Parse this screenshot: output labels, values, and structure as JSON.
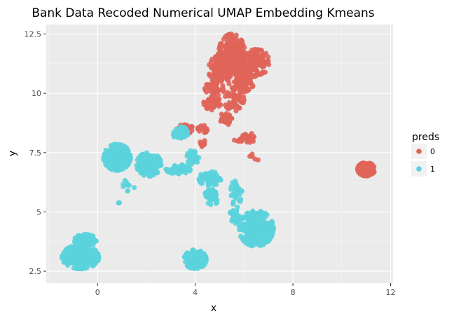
{
  "chart_data": {
    "type": "scatter",
    "title": "Bank Data Recoded Numerical UMAP Embedding Kmeans",
    "xlabel": "x",
    "ylabel": "y",
    "xlim": [
      -2.1,
      12.1
    ],
    "ylim": [
      2.0,
      12.9
    ],
    "x_ticks": [
      0,
      4,
      8,
      12
    ],
    "x_tick_labels": [
      "0",
      "4",
      "8",
      "12"
    ],
    "y_ticks": [
      2.5,
      5,
      7.5,
      10,
      12.5
    ],
    "y_tick_labels": [
      "2.5",
      "5",
      "7.5",
      "10",
      "12.5"
    ],
    "grid": true,
    "legend": {
      "title": "preds",
      "placement": "right",
      "entries": [
        {
          "label": "0",
          "color": "#e06459"
        },
        {
          "label": "1",
          "color": "#5bd3dc"
        }
      ]
    },
    "series": [
      {
        "name": "0",
        "color": "#e06459",
        "clusters": [
          {
            "cx": 5.5,
            "cy": 11.6,
            "rx": 0.55,
            "ry": 0.9,
            "n": 260
          },
          {
            "cx": 6.5,
            "cy": 11.3,
            "rx": 0.55,
            "ry": 0.55,
            "n": 130
          },
          {
            "cx": 5.0,
            "cy": 11.0,
            "rx": 0.45,
            "ry": 0.6,
            "n": 90
          },
          {
            "cx": 5.9,
            "cy": 10.6,
            "rx": 0.55,
            "ry": 0.55,
            "n": 110
          },
          {
            "cx": 4.8,
            "cy": 10.2,
            "rx": 0.4,
            "ry": 0.3,
            "n": 50
          },
          {
            "cx": 4.7,
            "cy": 9.6,
            "rx": 0.35,
            "ry": 0.3,
            "n": 55
          },
          {
            "cx": 5.6,
            "cy": 9.7,
            "rx": 0.4,
            "ry": 0.45,
            "n": 45
          },
          {
            "cx": 5.2,
            "cy": 8.9,
            "rx": 0.3,
            "ry": 0.25,
            "n": 35
          },
          {
            "cx": 3.6,
            "cy": 8.5,
            "rx": 0.3,
            "ry": 0.2,
            "n": 30
          },
          {
            "cx": 4.3,
            "cy": 8.5,
            "rx": 0.2,
            "ry": 0.2,
            "n": 18
          },
          {
            "cx": 4.3,
            "cy": 7.9,
            "rx": 0.12,
            "ry": 0.15,
            "n": 8
          },
          {
            "cx": 5.8,
            "cy": 8.0,
            "rx": 0.2,
            "ry": 0.12,
            "n": 10
          },
          {
            "cx": 6.2,
            "cy": 8.1,
            "rx": 0.3,
            "ry": 0.22,
            "n": 30
          },
          {
            "cx": 6.4,
            "cy": 7.2,
            "rx": 0.2,
            "ry": 0.25,
            "n": 5
          },
          {
            "cx": 11.0,
            "cy": 6.8,
            "rx": 0.35,
            "ry": 0.28,
            "n": 220
          }
        ]
      },
      {
        "name": "1",
        "color": "#5bd3dc",
        "clusters": [
          {
            "cx": 0.8,
            "cy": 7.3,
            "rx": 0.55,
            "ry": 0.55,
            "n": 240
          },
          {
            "cx": 2.1,
            "cy": 7.0,
            "rx": 0.5,
            "ry": 0.5,
            "n": 120
          },
          {
            "cx": 1.2,
            "cy": 6.1,
            "rx": 0.4,
            "ry": 0.3,
            "n": 10
          },
          {
            "cx": 3.3,
            "cy": 6.8,
            "rx": 0.5,
            "ry": 0.2,
            "n": 60
          },
          {
            "cx": 3.4,
            "cy": 8.3,
            "rx": 0.3,
            "ry": 0.3,
            "n": 45
          },
          {
            "cx": 3.9,
            "cy": 7.3,
            "rx": 0.25,
            "ry": 0.3,
            "n": 45
          },
          {
            "cx": 4.6,
            "cy": 6.4,
            "rx": 0.45,
            "ry": 0.3,
            "n": 70
          },
          {
            "cx": 4.7,
            "cy": 5.7,
            "rx": 0.3,
            "ry": 0.4,
            "n": 45
          },
          {
            "cx": 5.7,
            "cy": 5.8,
            "rx": 0.25,
            "ry": 0.6,
            "n": 35
          },
          {
            "cx": 6.5,
            "cy": 4.3,
            "rx": 0.7,
            "ry": 0.75,
            "n": 300
          },
          {
            "cx": 5.6,
            "cy": 4.8,
            "rx": 0.2,
            "ry": 0.3,
            "n": 25
          },
          {
            "cx": -0.7,
            "cy": 3.1,
            "rx": 0.75,
            "ry": 0.5,
            "n": 300
          },
          {
            "cx": -0.5,
            "cy": 3.8,
            "rx": 0.45,
            "ry": 0.25,
            "n": 90
          },
          {
            "cx": 4.0,
            "cy": 3.0,
            "rx": 0.45,
            "ry": 0.4,
            "n": 160
          },
          {
            "cx": 0.9,
            "cy": 5.4,
            "rx": 0.05,
            "ry": 0.05,
            "n": 2
          }
        ]
      }
    ]
  }
}
